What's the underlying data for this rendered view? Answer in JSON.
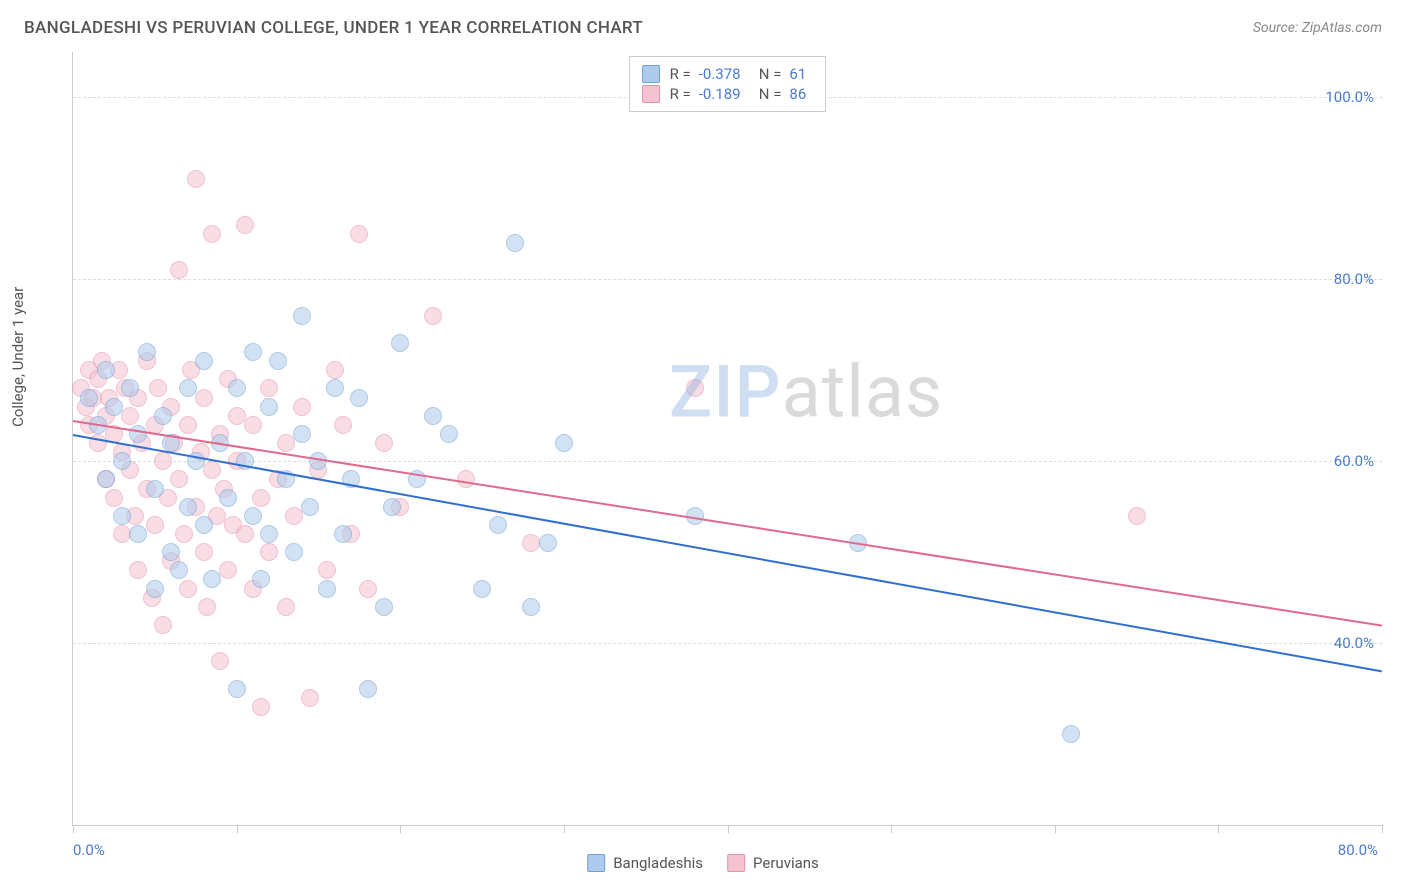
{
  "header": {
    "title": "BANGLADESHI VS PERUVIAN COLLEGE, UNDER 1 YEAR CORRELATION CHART",
    "source_prefix": "Source: ",
    "source_name": "ZipAtlas.com"
  },
  "chart": {
    "type": "scatter",
    "ylabel": "College, Under 1 year",
    "xlim": [
      0,
      80
    ],
    "ylim": [
      20,
      105
    ],
    "xtick_positions": [
      0,
      10,
      20,
      30,
      40,
      50,
      60,
      70,
      80
    ],
    "xtick_labels": {
      "0": "0.0%",
      "80": "80.0%"
    },
    "ytick_positions": [
      40,
      60,
      80,
      100
    ],
    "ytick_labels": {
      "40": "40.0%",
      "60": "60.0%",
      "80": "80.0%",
      "100": "100.0%"
    },
    "background_color": "#ffffff",
    "grid_color": "#dddddd",
    "axis_color": "#cccccc",
    "tick_label_color": "#4a7bd0",
    "label_color": "#555555",
    "marker_radius": 9,
    "marker_opacity": 0.55,
    "series": [
      {
        "name": "Bangladeshis",
        "fill": "#aecbeb",
        "stroke": "#6f9fd8",
        "trend_color": "#2f6fd0",
        "trend": {
          "x1": 0,
          "y1": 63,
          "x2": 80,
          "y2": 37
        },
        "stats": {
          "r": "-0.378",
          "n": "61"
        },
        "points": [
          [
            1,
            67
          ],
          [
            1.5,
            64
          ],
          [
            2,
            70
          ],
          [
            2,
            58
          ],
          [
            2.5,
            66
          ],
          [
            3,
            60
          ],
          [
            3,
            54
          ],
          [
            3.5,
            68
          ],
          [
            4,
            63
          ],
          [
            4,
            52
          ],
          [
            4.5,
            72
          ],
          [
            5,
            57
          ],
          [
            5,
            46
          ],
          [
            5.5,
            65
          ],
          [
            6,
            62
          ],
          [
            6,
            50
          ],
          [
            6.5,
            48
          ],
          [
            7,
            68
          ],
          [
            7,
            55
          ],
          [
            7.5,
            60
          ],
          [
            8,
            71
          ],
          [
            8,
            53
          ],
          [
            8.5,
            47
          ],
          [
            9,
            62
          ],
          [
            9.5,
            56
          ],
          [
            10,
            68
          ],
          [
            10,
            35
          ],
          [
            10.5,
            60
          ],
          [
            11,
            72
          ],
          [
            11,
            54
          ],
          [
            11.5,
            47
          ],
          [
            12,
            66
          ],
          [
            12,
            52
          ],
          [
            12.5,
            71
          ],
          [
            13,
            58
          ],
          [
            13.5,
            50
          ],
          [
            14,
            76
          ],
          [
            14,
            63
          ],
          [
            14.5,
            55
          ],
          [
            15,
            60
          ],
          [
            15.5,
            46
          ],
          [
            16,
            68
          ],
          [
            16.5,
            52
          ],
          [
            17,
            58
          ],
          [
            17.5,
            67
          ],
          [
            18,
            35
          ],
          [
            19,
            44
          ],
          [
            19.5,
            55
          ],
          [
            20,
            73
          ],
          [
            21,
            58
          ],
          [
            22,
            65
          ],
          [
            23,
            63
          ],
          [
            25,
            46
          ],
          [
            26,
            53
          ],
          [
            27,
            84
          ],
          [
            28,
            44
          ],
          [
            29,
            51
          ],
          [
            30,
            62
          ],
          [
            38,
            54
          ],
          [
            48,
            51
          ],
          [
            61,
            30
          ]
        ]
      },
      {
        "name": "Peruvians",
        "fill": "#f4c2d0",
        "stroke": "#e890ab",
        "trend_color": "#e06a8c",
        "trend": {
          "x1": 0,
          "y1": 64.5,
          "x2": 80,
          "y2": 42
        },
        "stats": {
          "r": "-0.189",
          "n": "86"
        },
        "points": [
          [
            0.5,
            68
          ],
          [
            0.8,
            66
          ],
          [
            1,
            70
          ],
          [
            1,
            64
          ],
          [
            1.2,
            67
          ],
          [
            1.5,
            69
          ],
          [
            1.5,
            62
          ],
          [
            1.8,
            71
          ],
          [
            2,
            65
          ],
          [
            2,
            58
          ],
          [
            2.2,
            67
          ],
          [
            2.5,
            63
          ],
          [
            2.5,
            56
          ],
          [
            2.8,
            70
          ],
          [
            3,
            61
          ],
          [
            3,
            52
          ],
          [
            3.2,
            68
          ],
          [
            3.5,
            59
          ],
          [
            3.5,
            65
          ],
          [
            3.8,
            54
          ],
          [
            4,
            67
          ],
          [
            4,
            48
          ],
          [
            4.2,
            62
          ],
          [
            4.5,
            57
          ],
          [
            4.5,
            71
          ],
          [
            4.8,
            45
          ],
          [
            5,
            64
          ],
          [
            5,
            53
          ],
          [
            5.2,
            68
          ],
          [
            5.5,
            60
          ],
          [
            5.5,
            42
          ],
          [
            5.8,
            56
          ],
          [
            6,
            66
          ],
          [
            6,
            49
          ],
          [
            6.2,
            62
          ],
          [
            6.5,
            58
          ],
          [
            6.5,
            81
          ],
          [
            6.8,
            52
          ],
          [
            7,
            64
          ],
          [
            7,
            46
          ],
          [
            7.2,
            70
          ],
          [
            7.5,
            55
          ],
          [
            7.5,
            91
          ],
          [
            7.8,
            61
          ],
          [
            8,
            50
          ],
          [
            8,
            67
          ],
          [
            8.2,
            44
          ],
          [
            8.5,
            59
          ],
          [
            8.5,
            85
          ],
          [
            8.8,
            54
          ],
          [
            9,
            63
          ],
          [
            9,
            38
          ],
          [
            9.2,
            57
          ],
          [
            9.5,
            69
          ],
          [
            9.5,
            48
          ],
          [
            9.8,
            53
          ],
          [
            10,
            65
          ],
          [
            10,
            60
          ],
          [
            10.5,
            86
          ],
          [
            10.5,
            52
          ],
          [
            11,
            46
          ],
          [
            11,
            64
          ],
          [
            11.5,
            56
          ],
          [
            11.5,
            33
          ],
          [
            12,
            68
          ],
          [
            12,
            50
          ],
          [
            12.5,
            58
          ],
          [
            13,
            62
          ],
          [
            13,
            44
          ],
          [
            13.5,
            54
          ],
          [
            14,
            66
          ],
          [
            14.5,
            34
          ],
          [
            15,
            59
          ],
          [
            15.5,
            48
          ],
          [
            16,
            70
          ],
          [
            16.5,
            64
          ],
          [
            17,
            52
          ],
          [
            17.5,
            85
          ],
          [
            18,
            46
          ],
          [
            19,
            62
          ],
          [
            20,
            55
          ],
          [
            22,
            76
          ],
          [
            24,
            58
          ],
          [
            28,
            51
          ],
          [
            38,
            68
          ],
          [
            65,
            54
          ]
        ]
      }
    ],
    "watermark": {
      "part1": "ZIP",
      "part2": "atlas"
    },
    "bottom_legend": [
      {
        "label": "Bangladeshis",
        "fill": "#aecbeb",
        "stroke": "#6f9fd8"
      },
      {
        "label": "Peruvians",
        "fill": "#f4c2d0",
        "stroke": "#e890ab"
      }
    ]
  }
}
